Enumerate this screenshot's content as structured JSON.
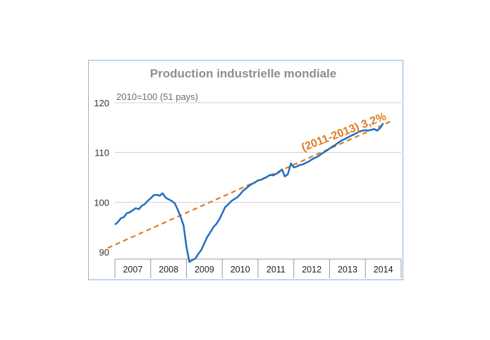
{
  "chart_data": {
    "type": "line",
    "title": "Production industrielle mondiale",
    "subtitle": "2010=100 (51 pays)",
    "xlabel": "",
    "ylabel": "",
    "ylim": [
      89,
      120
    ],
    "yticks": [
      90,
      100,
      110,
      120
    ],
    "categories": [
      "2007",
      "2008",
      "2009",
      "2010",
      "2011",
      "2012",
      "2013",
      "2014"
    ],
    "grid": true,
    "colors": {
      "series": "#1f6fc0",
      "trend": "#e07b24",
      "grid": "#d0d0d0",
      "frame": "#8fb6d9"
    },
    "series": [
      {
        "x": [
          2007.0,
          2007.08,
          2007.17,
          2007.25,
          2007.33,
          2007.42,
          2007.5,
          2007.58,
          2007.67,
          2007.75,
          2007.83,
          2007.92,
          2008.0,
          2008.08,
          2008.17,
          2008.25,
          2008.33,
          2008.42,
          2008.5,
          2008.58,
          2008.67,
          2008.75,
          2008.83,
          2008.92,
          2009.0,
          2009.08,
          2009.17,
          2009.25,
          2009.33,
          2009.42,
          2009.5,
          2009.58,
          2009.67,
          2009.75,
          2009.83,
          2009.92,
          2010.0,
          2010.08,
          2010.17,
          2010.25,
          2010.33,
          2010.42,
          2010.5,
          2010.58,
          2010.67,
          2010.75,
          2010.83,
          2010.92,
          2011.0,
          2011.08,
          2011.17,
          2011.25,
          2011.33,
          2011.42,
          2011.5,
          2011.58,
          2011.67,
          2011.75,
          2011.83,
          2011.92,
          2012.0,
          2012.08,
          2012.17,
          2012.25,
          2012.33,
          2012.42,
          2012.5,
          2012.58,
          2012.67,
          2012.75,
          2012.83,
          2012.92,
          2013.0,
          2013.08,
          2013.17,
          2013.25,
          2013.33,
          2013.42,
          2013.5,
          2013.58,
          2013.67,
          2013.75,
          2013.83,
          2013.92,
          2014.0,
          2014.08,
          2014.17,
          2014.25,
          2014.33,
          2014.42,
          2014.5
        ],
        "values": [
          95.5,
          96.0,
          96.8,
          97.0,
          97.8,
          98.0,
          98.4,
          98.8,
          98.6,
          99.3,
          99.6,
          100.3,
          100.8,
          101.4,
          101.5,
          101.3,
          101.8,
          100.9,
          100.6,
          100.3,
          99.8,
          98.6,
          97.2,
          95.3,
          91.0,
          88.0,
          88.4,
          88.7,
          89.6,
          90.5,
          91.8,
          93.0,
          94.0,
          95.0,
          95.6,
          96.6,
          97.8,
          99.0,
          99.6,
          100.2,
          100.6,
          101.0,
          101.6,
          102.3,
          102.8,
          103.3,
          103.7,
          104.0,
          104.4,
          104.5,
          104.8,
          105.1,
          105.5,
          105.4,
          105.7,
          106.0,
          106.6,
          105.2,
          105.6,
          107.8,
          107.0,
          107.2,
          107.5,
          107.6,
          107.9,
          108.2,
          108.6,
          108.9,
          109.2,
          109.6,
          110.0,
          110.4,
          110.8,
          111.2,
          111.6,
          112.0,
          112.4,
          112.7,
          113.0,
          113.3,
          113.6,
          113.9,
          114.2,
          114.4,
          114.5,
          114.4,
          114.6,
          114.7,
          114.4,
          115.0,
          115.9
        ]
      },
      {
        "x": [
          2006.8,
          2014.75
        ],
        "values": [
          90.8,
          116.4
        ]
      }
    ],
    "annotation": "(2011-2013) 3,2%"
  }
}
